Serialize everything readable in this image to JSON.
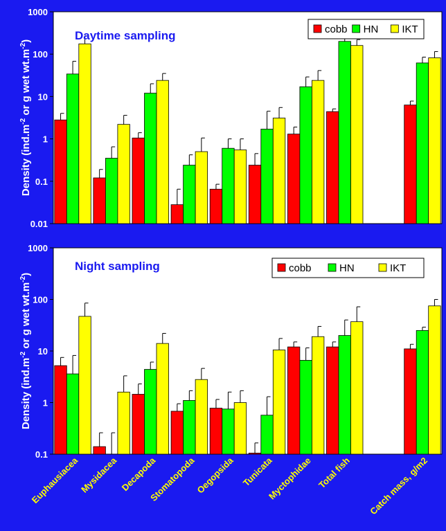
{
  "colors": {
    "background": "#1a1af0",
    "plot_bg": "#ffffff",
    "text": "#ffffff",
    "title_text": "#1a1af0",
    "cobb": "#ff0000",
    "HN": "#00ff00",
    "IKT": "#ffff00",
    "error_bar": "#000000"
  },
  "chart_data": [
    {
      "type": "bar",
      "title": "Daytime sampling",
      "ylabel": "Density (ind.m-2 or g wet wt.m-2)",
      "ylabel_parts": {
        "a": "Density (ind.m",
        "sup1": "-2",
        "b": " or g wet wt.m",
        "sup2": "-2",
        "c": ")"
      },
      "yscale": "log",
      "ylim": [
        0.01,
        1000
      ],
      "yticks": [
        "0.01",
        "0.1",
        "1",
        "10",
        "100",
        "1000"
      ],
      "legend": [
        "cobb",
        "HN",
        "IKT"
      ],
      "legend_position": "top-right",
      "categories": [
        "Euphausiacea",
        "Mysidacea",
        "Decapoda",
        "Stomatopoda",
        "Oegopsida",
        "Tunicata",
        "Myctophidae",
        "Total fish",
        "",
        "Catch mass, g/m2"
      ],
      "series": [
        {
          "name": "cobb",
          "values": [
            2.8,
            0.12,
            1.05,
            0.028,
            0.065,
            0.24,
            1.3,
            4.4,
            null,
            6.3
          ],
          "errors": [
            4.0,
            0.19,
            1.4,
            0.065,
            0.085,
            0.45,
            1.9,
            5.1,
            null,
            7.8
          ]
        },
        {
          "name": "HN",
          "values": [
            34,
            0.35,
            12,
            0.24,
            0.6,
            1.7,
            17,
            200,
            null,
            62
          ],
          "errors": [
            68,
            0.65,
            20,
            0.42,
            1.0,
            4.5,
            29,
            250,
            null,
            85
          ]
        },
        {
          "name": "IKT",
          "values": [
            175,
            2.2,
            24,
            0.5,
            0.55,
            3.1,
            24,
            160,
            null,
            82
          ],
          "errors": [
            270,
            3.6,
            35,
            1.05,
            1.0,
            5.5,
            41,
            220,
            null,
            115
          ]
        }
      ]
    },
    {
      "type": "bar",
      "title": "Night sampling",
      "ylabel": "Density (ind.m-2 or g wet wt.m-2)",
      "ylabel_parts": {
        "a": "Density (ind.m",
        "sup1": "-2",
        "b": " or g wet wt.m",
        "sup2": "-2",
        "c": ")"
      },
      "yscale": "log",
      "ylim": [
        0.1,
        1000
      ],
      "yticks": [
        "0.1",
        "1",
        "10",
        "100",
        "1000"
      ],
      "legend": [
        "cobb",
        "HN",
        "IKT"
      ],
      "legend_position": "top-right",
      "categories": [
        "Euphausiacea",
        "Mysidacea",
        "Decapoda",
        "Stomatopoda",
        "Oegopsida",
        "Tunicata",
        "Myctophidae",
        "Total fish",
        "",
        "Catch mass, g/m2"
      ],
      "series": [
        {
          "name": "cobb",
          "values": [
            5.2,
            0.14,
            1.45,
            0.68,
            0.78,
            0.105,
            12,
            12,
            null,
            11
          ],
          "errors": [
            7.5,
            0.26,
            2.3,
            0.95,
            1.15,
            0.165,
            15,
            15,
            null,
            13.5
          ]
        },
        {
          "name": "HN",
          "values": [
            3.6,
            0.1,
            4.4,
            1.1,
            0.75,
            0.57,
            6.6,
            20,
            null,
            25
          ],
          "errors": [
            8.2,
            0.26,
            6.1,
            1.7,
            1.6,
            1.3,
            11.5,
            40,
            null,
            29
          ]
        },
        {
          "name": "IKT",
          "values": [
            47,
            1.6,
            14,
            2.8,
            1.0,
            10.5,
            19,
            37,
            null,
            75
          ],
          "errors": [
            85,
            3.3,
            22,
            4.6,
            1.7,
            17.5,
            30,
            72,
            null,
            100
          ]
        }
      ]
    }
  ],
  "x_labels": [
    "Euphausiacea",
    "Mysidacea",
    "Decapoda",
    "Stomatopoda",
    "Oegopsida",
    "Tunicata",
    "Myctophidae",
    "Total fish",
    "Catch mass, g/m2"
  ]
}
